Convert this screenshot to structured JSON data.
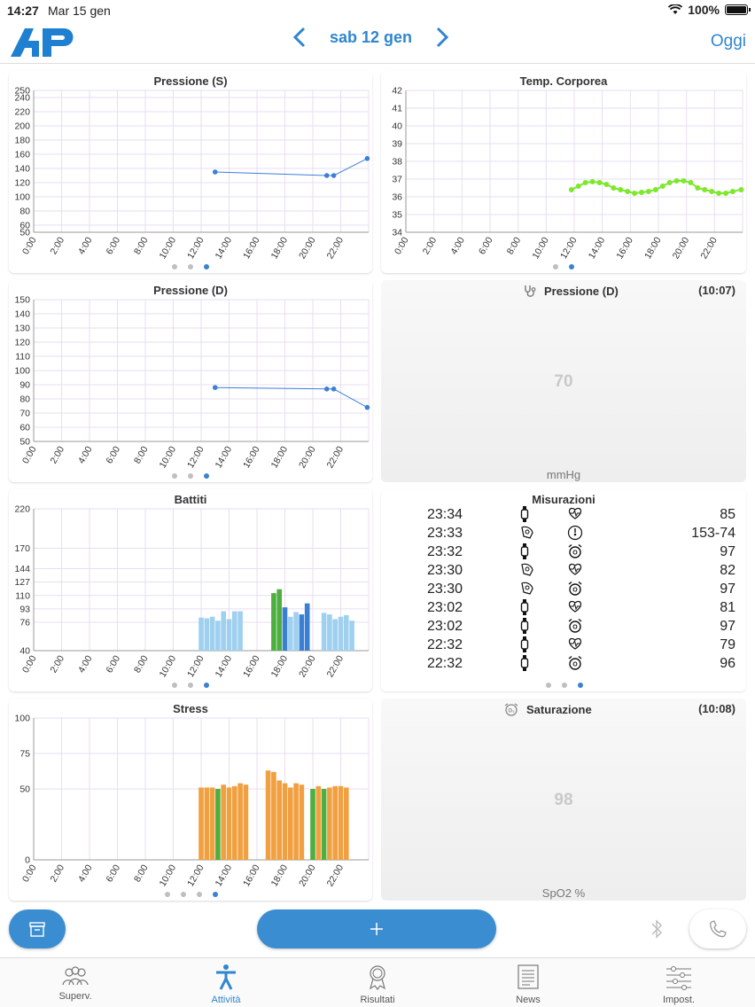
{
  "status": {
    "time": "14:27",
    "date": "Mar 15 gen",
    "battery": "100%"
  },
  "header": {
    "logo": "AP",
    "date_label": "sab 12 gen",
    "today": "Oggi"
  },
  "charts": {
    "ps": {
      "title": "Pressione (S)"
    },
    "temp": {
      "title": "Temp. Corporea"
    },
    "pd": {
      "title": "Pressione (D)"
    },
    "hr": {
      "title": "Battiti"
    },
    "stress": {
      "title": "Stress"
    }
  },
  "gauges": {
    "pd": {
      "title": "Pressione (D)",
      "time": "(10:07)",
      "value": "70",
      "unit": "mmHg",
      "icon": "stethoscope-icon"
    },
    "spo2": {
      "title": "Saturazione",
      "time": "(10:08)",
      "value": "98",
      "unit": "SpO2 %",
      "icon": "oximeter-icon"
    }
  },
  "measurements": {
    "title": "Misurazioni",
    "rows": [
      {
        "time": "23:34",
        "src": "watch",
        "type": "heart",
        "value": "85"
      },
      {
        "time": "23:33",
        "src": "cuff",
        "type": "pressure",
        "value": "153-74"
      },
      {
        "time": "23:32",
        "src": "watch",
        "type": "stress",
        "value": "97"
      },
      {
        "time": "23:30",
        "src": "cuff",
        "type": "heart",
        "value": "82"
      },
      {
        "time": "23:30",
        "src": "cuff",
        "type": "stress",
        "value": "97"
      },
      {
        "time": "23:02",
        "src": "watch",
        "type": "heart",
        "value": "81"
      },
      {
        "time": "23:02",
        "src": "watch",
        "type": "stress",
        "value": "97"
      },
      {
        "time": "22:32",
        "src": "watch",
        "type": "heart",
        "value": "79"
      },
      {
        "time": "22:32",
        "src": "watch",
        "type": "stress",
        "value": "96"
      }
    ]
  },
  "tabs": [
    {
      "label": "Superv.",
      "icon": "people-icon"
    },
    {
      "label": "Attività",
      "icon": "person-activity-icon"
    },
    {
      "label": "Risultati",
      "icon": "award-icon"
    },
    {
      "label": "News",
      "icon": "news-icon"
    },
    {
      "label": "Impost.",
      "icon": "sliders-icon"
    }
  ],
  "colors": {
    "accent": "#2f86cf",
    "line": "#3b7fd6",
    "temp": "#7de82c",
    "hr_light": "#9fd0f0",
    "hr_green": "#4caf3e",
    "hr_blue": "#3a7fd2",
    "stress_orange": "#f0a040",
    "stress_green": "#55b948"
  },
  "chart_data": [
    {
      "id": "ps",
      "type": "line",
      "title": "Pressione (S)",
      "x_ticks": [
        "0:00",
        "2:00",
        "4:00",
        "6:00",
        "8:00",
        "10:00",
        "12:00",
        "14:00",
        "16:00",
        "18:00",
        "20:00",
        "22:00"
      ],
      "y_ticks": [
        50,
        60,
        80,
        100,
        120,
        140,
        160,
        180,
        200,
        220,
        240,
        250
      ],
      "ylim": [
        50,
        250
      ],
      "points": [
        [
          13.0,
          135
        ],
        [
          21.0,
          130
        ],
        [
          21.5,
          130
        ],
        [
          23.9,
          154
        ]
      ]
    },
    {
      "id": "temp",
      "type": "line",
      "title": "Temp. Corporea",
      "x_ticks": [
        "0:00",
        "2:00",
        "4:00",
        "6:00",
        "8:00",
        "10:00",
        "12:00",
        "14:00",
        "16:00",
        "18:00",
        "20:00",
        "22:00"
      ],
      "y_ticks": [
        34,
        35,
        36,
        37,
        38,
        39,
        40,
        41,
        42
      ],
      "ylim": [
        34,
        42
      ],
      "points": [
        [
          11.8,
          36.4
        ],
        [
          12.3,
          36.6
        ],
        [
          12.8,
          36.8
        ],
        [
          13.3,
          36.85
        ],
        [
          13.8,
          36.8
        ],
        [
          14.3,
          36.7
        ],
        [
          14.8,
          36.5
        ],
        [
          15.3,
          36.4
        ],
        [
          15.8,
          36.3
        ],
        [
          16.3,
          36.2
        ],
        [
          16.8,
          36.25
        ],
        [
          17.3,
          36.3
        ],
        [
          17.8,
          36.4
        ],
        [
          18.3,
          36.6
        ],
        [
          18.8,
          36.8
        ],
        [
          19.3,
          36.9
        ],
        [
          19.8,
          36.9
        ],
        [
          20.3,
          36.8
        ],
        [
          20.8,
          36.5
        ],
        [
          21.3,
          36.4
        ],
        [
          21.8,
          36.3
        ],
        [
          22.3,
          36.2
        ],
        [
          22.8,
          36.2
        ],
        [
          23.3,
          36.3
        ],
        [
          23.9,
          36.4
        ]
      ]
    },
    {
      "id": "pd",
      "type": "line",
      "title": "Pressione (D)",
      "x_ticks": [
        "0:00",
        "2:00",
        "4:00",
        "6:00",
        "8:00",
        "10:00",
        "12:00",
        "14:00",
        "16:00",
        "18:00",
        "20:00",
        "22:00"
      ],
      "y_ticks": [
        50,
        60,
        70,
        80,
        90,
        100,
        110,
        120,
        130,
        140,
        150
      ],
      "ylim": [
        50,
        150
      ],
      "points": [
        [
          13.0,
          88
        ],
        [
          21.0,
          87
        ],
        [
          21.5,
          87
        ],
        [
          23.9,
          74
        ]
      ]
    },
    {
      "id": "hr",
      "type": "bar",
      "title": "Battiti",
      "x_ticks": [
        "0:00",
        "2:00",
        "4:00",
        "6:00",
        "8:00",
        "10:00",
        "12:00",
        "14:00",
        "16:00",
        "18:00",
        "20:00",
        "22:00"
      ],
      "y_ticks": [
        40,
        76,
        93,
        110,
        127,
        144,
        170,
        220
      ],
      "ylim": [
        40,
        220
      ],
      "bars": [
        {
          "x": 12.0,
          "v": 82,
          "c": "light"
        },
        {
          "x": 12.4,
          "v": 81,
          "c": "light"
        },
        {
          "x": 12.8,
          "v": 83,
          "c": "light"
        },
        {
          "x": 13.2,
          "v": 78,
          "c": "light"
        },
        {
          "x": 13.6,
          "v": 90,
          "c": "light"
        },
        {
          "x": 14.0,
          "v": 80,
          "c": "light"
        },
        {
          "x": 14.4,
          "v": 90,
          "c": "light"
        },
        {
          "x": 14.8,
          "v": 90,
          "c": "light"
        },
        {
          "x": 17.2,
          "v": 113,
          "c": "green"
        },
        {
          "x": 17.6,
          "v": 118,
          "c": "green"
        },
        {
          "x": 18.0,
          "v": 95,
          "c": "blue"
        },
        {
          "x": 18.4,
          "v": 83,
          "c": "light"
        },
        {
          "x": 18.8,
          "v": 89,
          "c": "light"
        },
        {
          "x": 19.2,
          "v": 86,
          "c": "blue"
        },
        {
          "x": 19.6,
          "v": 100,
          "c": "blue"
        },
        {
          "x": 20.8,
          "v": 88,
          "c": "light"
        },
        {
          "x": 21.2,
          "v": 86,
          "c": "light"
        },
        {
          "x": 21.6,
          "v": 80,
          "c": "light"
        },
        {
          "x": 22.0,
          "v": 83,
          "c": "light"
        },
        {
          "x": 22.4,
          "v": 85,
          "c": "light"
        },
        {
          "x": 22.8,
          "v": 78,
          "c": "light"
        }
      ]
    },
    {
      "id": "stress",
      "type": "bar",
      "title": "Stress",
      "x_ticks": [
        "0:00",
        "2:00",
        "4:00",
        "6:00",
        "8:00",
        "10:00",
        "12:00",
        "14:00",
        "16:00",
        "18:00",
        "20:00",
        "22:00"
      ],
      "y_ticks": [
        0,
        50,
        75,
        100
      ],
      "ylim": [
        0,
        100
      ],
      "bars": [
        {
          "x": 12.0,
          "v": 51,
          "c": "orange"
        },
        {
          "x": 12.4,
          "v": 51,
          "c": "orange"
        },
        {
          "x": 12.8,
          "v": 51,
          "c": "orange"
        },
        {
          "x": 13.2,
          "v": 50,
          "c": "green"
        },
        {
          "x": 13.6,
          "v": 53,
          "c": "orange"
        },
        {
          "x": 14.0,
          "v": 51,
          "c": "orange"
        },
        {
          "x": 14.4,
          "v": 52,
          "c": "orange"
        },
        {
          "x": 14.8,
          "v": 54,
          "c": "orange"
        },
        {
          "x": 15.2,
          "v": 53,
          "c": "orange"
        },
        {
          "x": 16.8,
          "v": 63,
          "c": "orange"
        },
        {
          "x": 17.2,
          "v": 62,
          "c": "orange"
        },
        {
          "x": 17.6,
          "v": 56,
          "c": "orange"
        },
        {
          "x": 18.0,
          "v": 54,
          "c": "orange"
        },
        {
          "x": 18.4,
          "v": 51,
          "c": "orange"
        },
        {
          "x": 18.8,
          "v": 54,
          "c": "orange"
        },
        {
          "x": 19.2,
          "v": 53,
          "c": "orange"
        },
        {
          "x": 20.0,
          "v": 50,
          "c": "green"
        },
        {
          "x": 20.4,
          "v": 52,
          "c": "orange"
        },
        {
          "x": 20.8,
          "v": 50,
          "c": "green"
        },
        {
          "x": 21.2,
          "v": 51,
          "c": "orange"
        },
        {
          "x": 21.6,
          "v": 52,
          "c": "orange"
        },
        {
          "x": 22.0,
          "v": 52,
          "c": "orange"
        },
        {
          "x": 22.4,
          "v": 51,
          "c": "orange"
        }
      ]
    }
  ]
}
